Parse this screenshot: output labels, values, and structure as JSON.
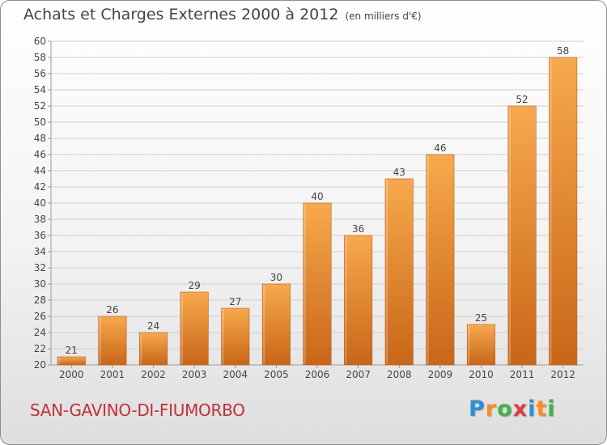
{
  "title": "Achats et Charges Externes 2000 à 2012",
  "unit_note": "(en milliers d'€)",
  "commune": "SAN-GAVINO-DI-FIUMORBO",
  "logo": {
    "letters": [
      "P",
      "r",
      "o",
      "x",
      "i",
      "t",
      "i"
    ],
    "colors": [
      "#2b8fd6",
      "#ff8c1a",
      "#3cb34a",
      "#e23b3b",
      "#2b8fd6",
      "#ff8c1a",
      "#3cb34a"
    ]
  },
  "colors": {
    "bar_light": "#f7a94d",
    "bar_dark": "#c96618",
    "grid": "#cfcfcf",
    "axis": "#9a9a9a",
    "text": "#444444"
  },
  "chart_data": {
    "type": "bar",
    "categories": [
      "2000",
      "2001",
      "2002",
      "2003",
      "2004",
      "2005",
      "2006",
      "2007",
      "2008",
      "2009",
      "2010",
      "2011",
      "2012"
    ],
    "values": [
      21,
      26,
      24,
      29,
      27,
      30,
      40,
      36,
      43,
      46,
      25,
      52,
      58
    ],
    "ylim": [
      20,
      60
    ],
    "yticks": [
      20,
      22,
      24,
      26,
      28,
      30,
      32,
      34,
      36,
      38,
      40,
      42,
      44,
      46,
      48,
      50,
      52,
      54,
      56,
      58,
      60
    ],
    "grid": true
  }
}
